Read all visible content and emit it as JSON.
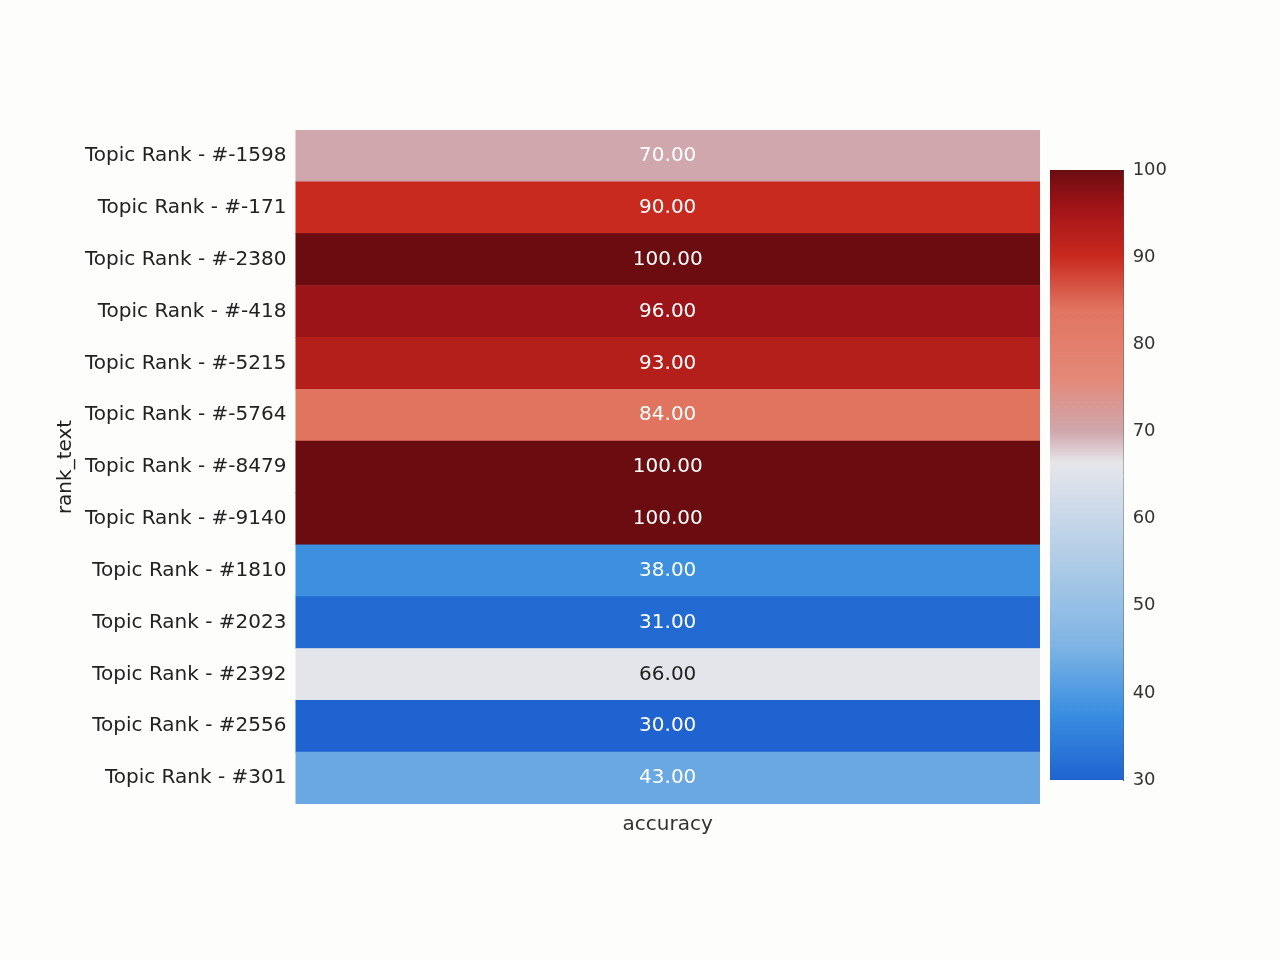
{
  "chart_data": {
    "type": "heatmap",
    "y_label": "rank_text",
    "rows": [
      "Topic Rank - #-1598",
      "Topic Rank - #-171",
      "Topic Rank - #-2380",
      "Topic Rank - #-418",
      "Topic Rank - #-5215",
      "Topic Rank - #-5764",
      "Topic Rank - #-8479",
      "Topic Rank - #-9140",
      "Topic Rank - #1810",
      "Topic Rank - #2023",
      "Topic Rank - #2392",
      "Topic Rank - #2556",
      "Topic Rank - #301"
    ],
    "columns": [
      "accuracy"
    ],
    "cells": [
      [
        70
      ],
      [
        90
      ],
      [
        100
      ],
      [
        96
      ],
      [
        93
      ],
      [
        84
      ],
      [
        100
      ],
      [
        100
      ],
      [
        38
      ],
      [
        31
      ],
      [
        66
      ],
      [
        30
      ],
      [
        43
      ]
    ],
    "value_labels": [
      [
        "70.00"
      ],
      [
        "90.00"
      ],
      [
        "100.00"
      ],
      [
        "96.00"
      ],
      [
        "93.00"
      ],
      [
        "84.00"
      ],
      [
        "100.00"
      ],
      [
        "100.00"
      ],
      [
        "38.00"
      ],
      [
        "31.00"
      ],
      [
        "66.00"
      ],
      [
        "30.00"
      ],
      [
        "43.00"
      ]
    ],
    "data_labels": true,
    "colorbar": {
      "range": [
        30,
        100
      ],
      "ticks": [
        30,
        40,
        50,
        60,
        70,
        80,
        90,
        100
      ]
    }
  }
}
